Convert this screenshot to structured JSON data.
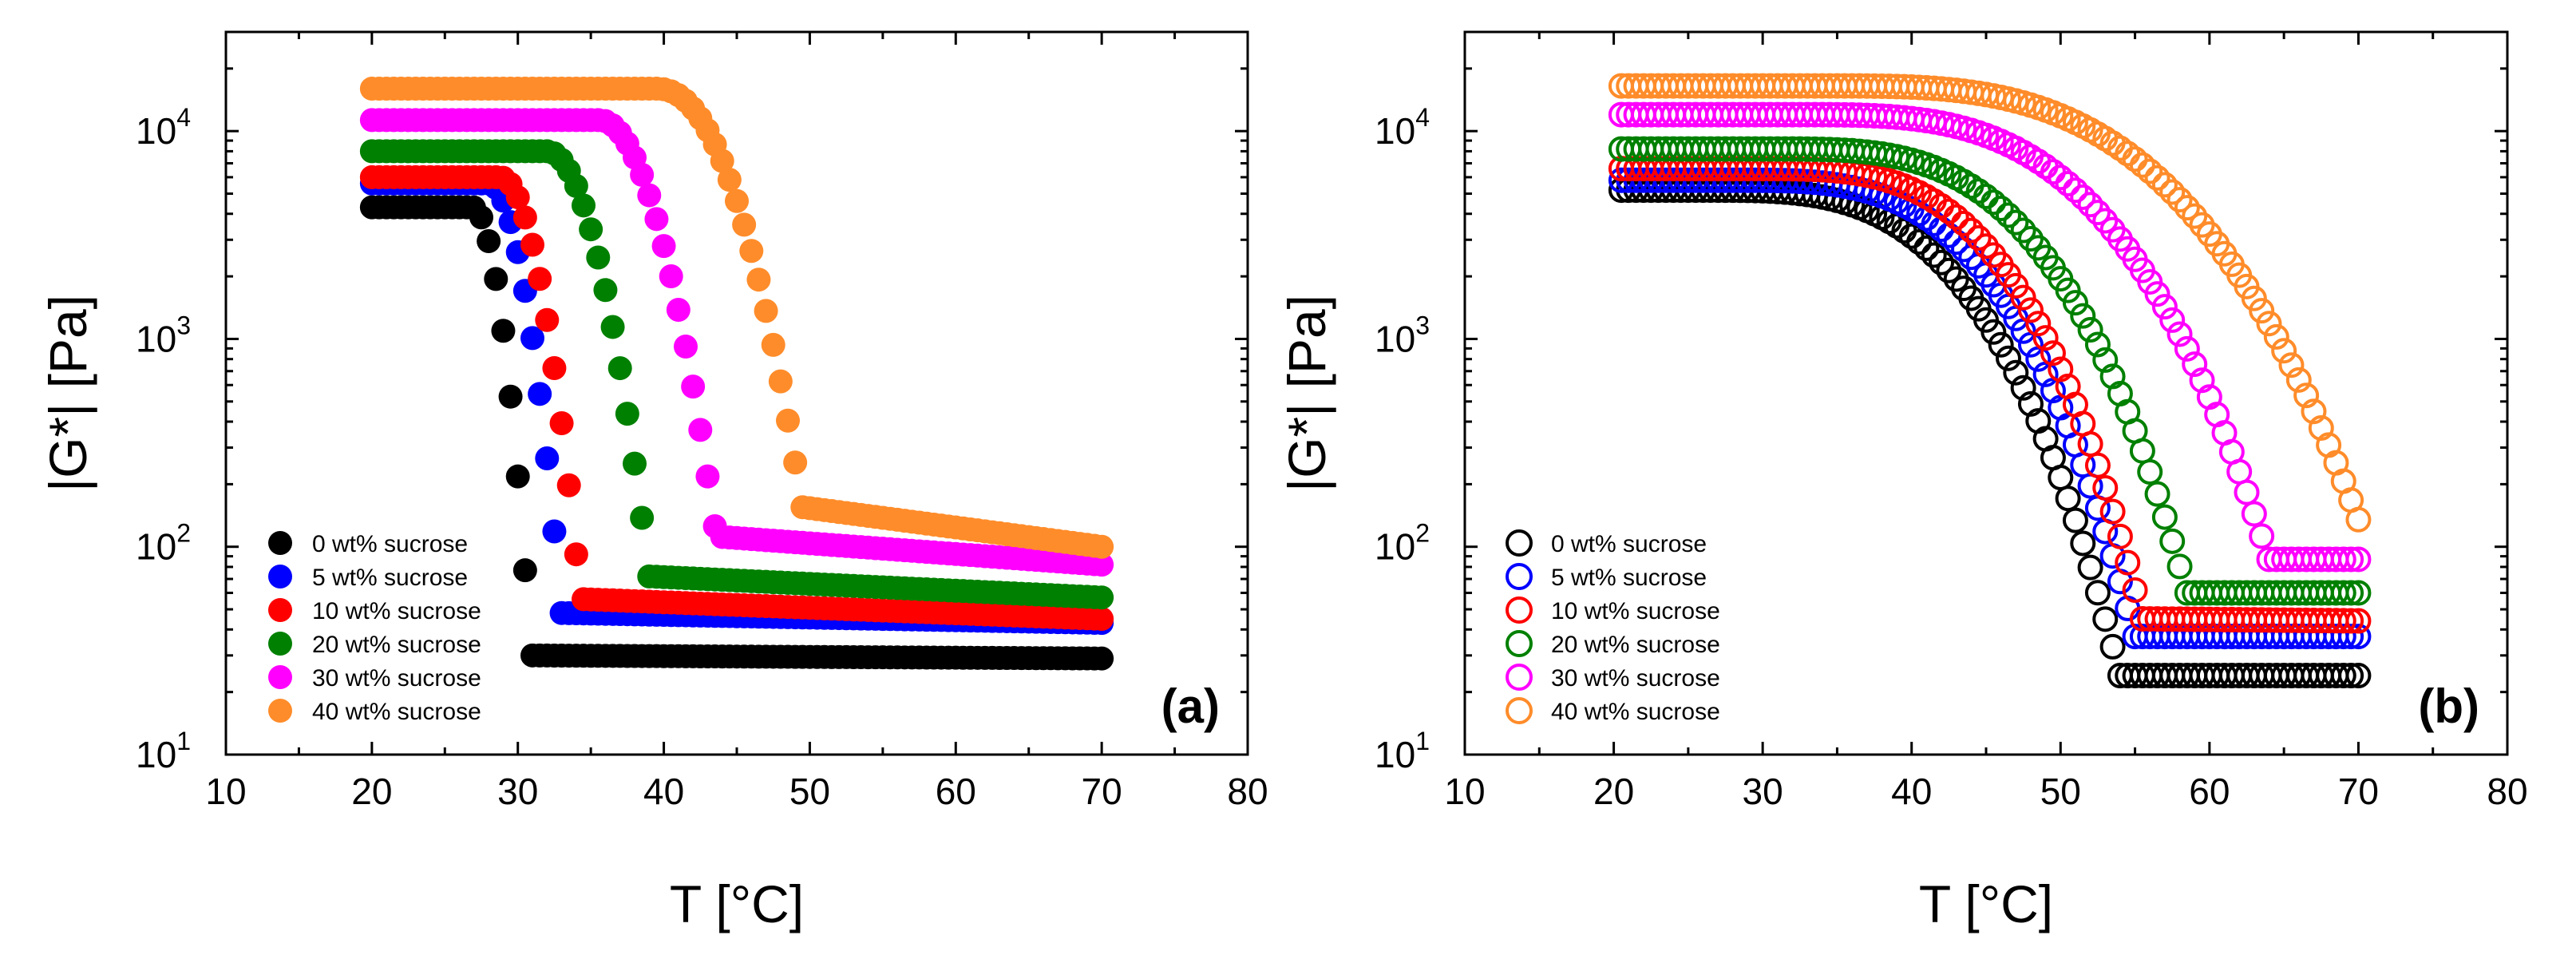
{
  "chart_data": [
    {
      "type": "scatter",
      "panel_label": "(a)",
      "marker_fill": "filled",
      "xlabel": "T [°C]",
      "ylabel": "|G*| [Pa]",
      "xlim": [
        10,
        80
      ],
      "ylim": [
        10,
        30000
      ],
      "yscale": "log",
      "x_ticks": [
        "10",
        "20",
        "30",
        "40",
        "50",
        "60",
        "70",
        "80"
      ],
      "y_ticks": [
        {
          "base": "10",
          "exp": "1"
        },
        {
          "base": "10",
          "exp": "2"
        },
        {
          "base": "10",
          "exp": "3"
        },
        {
          "base": "10",
          "exp": "4"
        }
      ],
      "legend_position": "bottom-left",
      "series": [
        {
          "name": "0 wt% sucrose",
          "color": "#000000",
          "T_start": 20,
          "G_high": 4300,
          "G_low": 30,
          "drop_end": 30.9,
          "drop_width": 4.0,
          "sharpness": 2.0,
          "tail_end": 29
        },
        {
          "name": "5 wt% sucrose",
          "color": "#0000ff",
          "T_start": 20,
          "G_high": 5600,
          "G_low": 48,
          "drop_end": 33.0,
          "drop_width": 5.0,
          "sharpness": 2.0,
          "tail_end": 43
        },
        {
          "name": "10 wt% sucrose",
          "color": "#ff0000",
          "T_start": 20,
          "G_high": 6000,
          "G_low": 56,
          "drop_end": 34.3,
          "drop_width": 5.5,
          "sharpness": 2.0,
          "tail_end": 45
        },
        {
          "name": "20 wt% sucrose",
          "color": "#008000",
          "T_start": 20,
          "G_high": 8000,
          "G_low": 72,
          "drop_end": 39.0,
          "drop_width": 7.0,
          "sharpness": 2.0,
          "tail_end": 57
        },
        {
          "name": "30 wt% sucrose",
          "color": "#ff00ff",
          "T_start": 20,
          "G_high": 11300,
          "G_low": 112,
          "drop_end": 43.6,
          "drop_width": 8.0,
          "sharpness": 2.0,
          "tail_end": 82
        },
        {
          "name": "40 wt% sucrose",
          "color": "#ff8c2a",
          "T_start": 20,
          "G_high": 16000,
          "G_low": 155,
          "drop_end": 49.5,
          "drop_width": 10.0,
          "sharpness": 2.2,
          "tail_end": 100
        }
      ]
    },
    {
      "type": "scatter",
      "panel_label": "(b)",
      "marker_fill": "open",
      "xlabel": "T [°C]",
      "ylabel": "|G*| [Pa]",
      "xlim": [
        10,
        80
      ],
      "ylim": [
        10,
        30000
      ],
      "yscale": "log",
      "x_ticks": [
        "10",
        "20",
        "30",
        "40",
        "50",
        "60",
        "70",
        "80"
      ],
      "y_ticks": [
        {
          "base": "10",
          "exp": "1"
        },
        {
          "base": "10",
          "exp": "2"
        },
        {
          "base": "10",
          "exp": "3"
        },
        {
          "base": "10",
          "exp": "4"
        }
      ],
      "legend_position": "bottom-left",
      "series": [
        {
          "name": "0 wt% sucrose",
          "color": "#000000",
          "T_start": 20.5,
          "G_high": 5200,
          "G_low": 24,
          "drop_end": 54.0,
          "drop_width": 28,
          "sharpness": 3.4,
          "tail_end": 24
        },
        {
          "name": "5 wt% sucrose",
          "color": "#0000ff",
          "T_start": 20.5,
          "G_high": 5800,
          "G_low": 37,
          "drop_end": 55.0,
          "drop_width": 27,
          "sharpness": 3.4,
          "tail_end": 37
        },
        {
          "name": "10 wt% sucrose",
          "color": "#ff0000",
          "T_start": 20.5,
          "G_high": 6600,
          "G_low": 45,
          "drop_end": 55.5,
          "drop_width": 26,
          "sharpness": 3.4,
          "tail_end": 44
        },
        {
          "name": "20 wt% sucrose",
          "color": "#008000",
          "T_start": 20.5,
          "G_high": 8200,
          "G_low": 60,
          "drop_end": 58.5,
          "drop_width": 28,
          "sharpness": 3.4,
          "tail_end": 60
        },
        {
          "name": "30 wt% sucrose",
          "color": "#ff00ff",
          "T_start": 20.5,
          "G_high": 12000,
          "G_low": 87,
          "drop_end": 64.0,
          "drop_width": 32,
          "sharpness": 3.4,
          "tail_end": 87
        },
        {
          "name": "40 wt% sucrose",
          "color": "#ff8c2a",
          "T_start": 20.5,
          "G_high": 16500,
          "G_low": 135,
          "drop_end": 70.0,
          "drop_width": 36,
          "sharpness": 3.3,
          "tail_end": 135
        }
      ]
    }
  ]
}
